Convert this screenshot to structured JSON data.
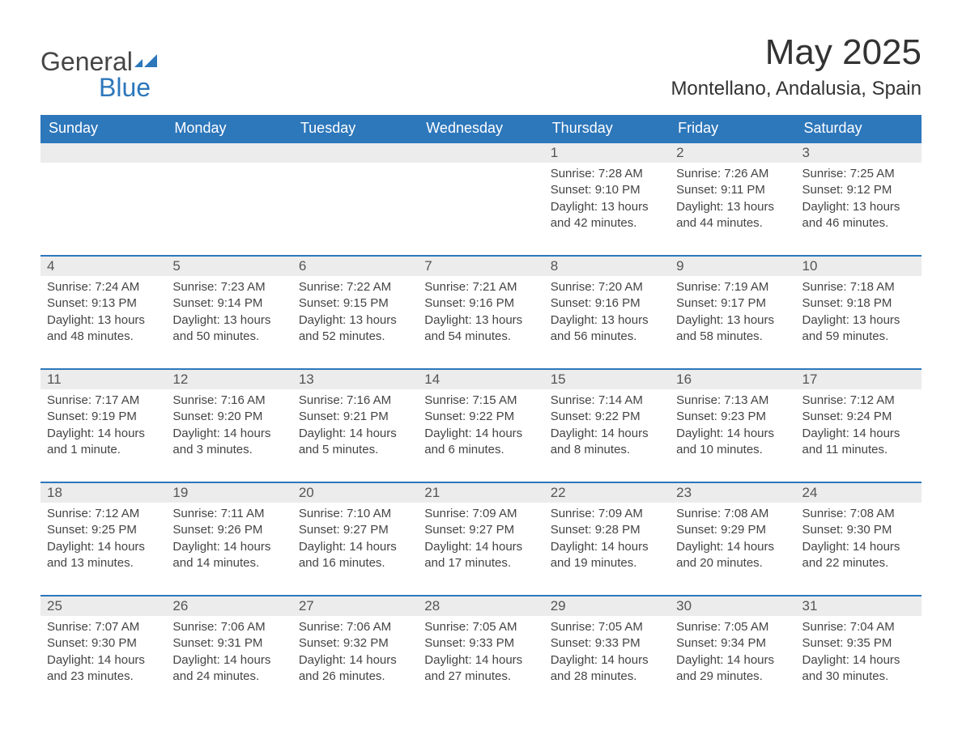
{
  "brand": {
    "word1": "General",
    "word2": "Blue"
  },
  "title": "May 2025",
  "location": "Montellano, Andalusia, Spain",
  "colors": {
    "header_blue": "#2d77bb",
    "day_bg": "#ececec",
    "text": "#333333",
    "cell_text": "#444444",
    "background": "#ffffff"
  },
  "days_of_week": [
    "Sunday",
    "Monday",
    "Tuesday",
    "Wednesday",
    "Thursday",
    "Friday",
    "Saturday"
  ],
  "calendar": {
    "first_weekday_index": 4,
    "num_days": 31,
    "label_prefixes": {
      "sunrise": "Sunrise: ",
      "sunset": "Sunset: ",
      "daylight": "Daylight: "
    },
    "days": [
      {
        "n": 1,
        "sunrise": "7:28 AM",
        "sunset": "9:10 PM",
        "daylight": "13 hours and 42 minutes."
      },
      {
        "n": 2,
        "sunrise": "7:26 AM",
        "sunset": "9:11 PM",
        "daylight": "13 hours and 44 minutes."
      },
      {
        "n": 3,
        "sunrise": "7:25 AM",
        "sunset": "9:12 PM",
        "daylight": "13 hours and 46 minutes."
      },
      {
        "n": 4,
        "sunrise": "7:24 AM",
        "sunset": "9:13 PM",
        "daylight": "13 hours and 48 minutes."
      },
      {
        "n": 5,
        "sunrise": "7:23 AM",
        "sunset": "9:14 PM",
        "daylight": "13 hours and 50 minutes."
      },
      {
        "n": 6,
        "sunrise": "7:22 AM",
        "sunset": "9:15 PM",
        "daylight": "13 hours and 52 minutes."
      },
      {
        "n": 7,
        "sunrise": "7:21 AM",
        "sunset": "9:16 PM",
        "daylight": "13 hours and 54 minutes."
      },
      {
        "n": 8,
        "sunrise": "7:20 AM",
        "sunset": "9:16 PM",
        "daylight": "13 hours and 56 minutes."
      },
      {
        "n": 9,
        "sunrise": "7:19 AM",
        "sunset": "9:17 PM",
        "daylight": "13 hours and 58 minutes."
      },
      {
        "n": 10,
        "sunrise": "7:18 AM",
        "sunset": "9:18 PM",
        "daylight": "13 hours and 59 minutes."
      },
      {
        "n": 11,
        "sunrise": "7:17 AM",
        "sunset": "9:19 PM",
        "daylight": "14 hours and 1 minute."
      },
      {
        "n": 12,
        "sunrise": "7:16 AM",
        "sunset": "9:20 PM",
        "daylight": "14 hours and 3 minutes."
      },
      {
        "n": 13,
        "sunrise": "7:16 AM",
        "sunset": "9:21 PM",
        "daylight": "14 hours and 5 minutes."
      },
      {
        "n": 14,
        "sunrise": "7:15 AM",
        "sunset": "9:22 PM",
        "daylight": "14 hours and 6 minutes."
      },
      {
        "n": 15,
        "sunrise": "7:14 AM",
        "sunset": "9:22 PM",
        "daylight": "14 hours and 8 minutes."
      },
      {
        "n": 16,
        "sunrise": "7:13 AM",
        "sunset": "9:23 PM",
        "daylight": "14 hours and 10 minutes."
      },
      {
        "n": 17,
        "sunrise": "7:12 AM",
        "sunset": "9:24 PM",
        "daylight": "14 hours and 11 minutes."
      },
      {
        "n": 18,
        "sunrise": "7:12 AM",
        "sunset": "9:25 PM",
        "daylight": "14 hours and 13 minutes."
      },
      {
        "n": 19,
        "sunrise": "7:11 AM",
        "sunset": "9:26 PM",
        "daylight": "14 hours and 14 minutes."
      },
      {
        "n": 20,
        "sunrise": "7:10 AM",
        "sunset": "9:27 PM",
        "daylight": "14 hours and 16 minutes."
      },
      {
        "n": 21,
        "sunrise": "7:09 AM",
        "sunset": "9:27 PM",
        "daylight": "14 hours and 17 minutes."
      },
      {
        "n": 22,
        "sunrise": "7:09 AM",
        "sunset": "9:28 PM",
        "daylight": "14 hours and 19 minutes."
      },
      {
        "n": 23,
        "sunrise": "7:08 AM",
        "sunset": "9:29 PM",
        "daylight": "14 hours and 20 minutes."
      },
      {
        "n": 24,
        "sunrise": "7:08 AM",
        "sunset": "9:30 PM",
        "daylight": "14 hours and 22 minutes."
      },
      {
        "n": 25,
        "sunrise": "7:07 AM",
        "sunset": "9:30 PM",
        "daylight": "14 hours and 23 minutes."
      },
      {
        "n": 26,
        "sunrise": "7:06 AM",
        "sunset": "9:31 PM",
        "daylight": "14 hours and 24 minutes."
      },
      {
        "n": 27,
        "sunrise": "7:06 AM",
        "sunset": "9:32 PM",
        "daylight": "14 hours and 26 minutes."
      },
      {
        "n": 28,
        "sunrise": "7:05 AM",
        "sunset": "9:33 PM",
        "daylight": "14 hours and 27 minutes."
      },
      {
        "n": 29,
        "sunrise": "7:05 AM",
        "sunset": "9:33 PM",
        "daylight": "14 hours and 28 minutes."
      },
      {
        "n": 30,
        "sunrise": "7:05 AM",
        "sunset": "9:34 PM",
        "daylight": "14 hours and 29 minutes."
      },
      {
        "n": 31,
        "sunrise": "7:04 AM",
        "sunset": "9:35 PM",
        "daylight": "14 hours and 30 minutes."
      }
    ]
  }
}
